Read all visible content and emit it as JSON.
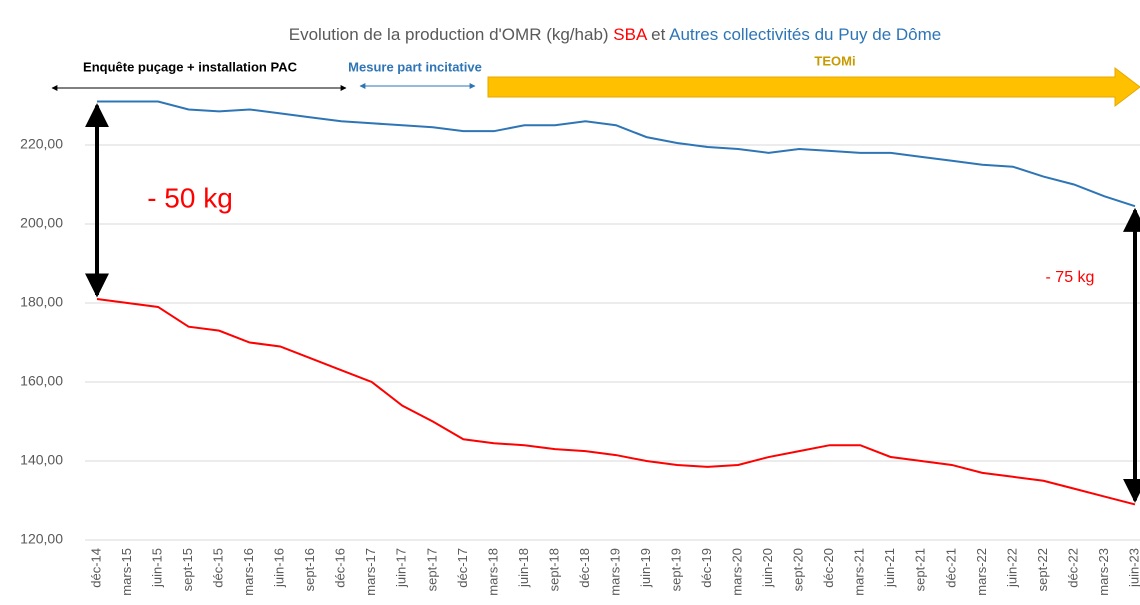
{
  "chart_data": {
    "type": "line",
    "title": "Evolution de la production d'OMR (kg/hab)",
    "title_joiner": "et",
    "categories": [
      "déc-14",
      "mars-15",
      "juin-15",
      "sept-15",
      "déc-15",
      "mars-16",
      "juin-16",
      "sept-16",
      "déc-16",
      "mars-17",
      "juin-17",
      "sept-17",
      "déc-17",
      "mars-18",
      "juin-18",
      "sept-18",
      "déc-18",
      "mars-19",
      "juin-19",
      "sept-19",
      "déc-19",
      "mars-20",
      "juin-20",
      "sept-20",
      "déc-20",
      "mars-21",
      "juin-21",
      "sept-21",
      "déc-21",
      "mars-22",
      "juin-22",
      "sept-22",
      "déc-22",
      "mars-23",
      "juin-23"
    ],
    "series": [
      {
        "name": "SBA",
        "color": "#ff0000",
        "values": [
          181,
          180,
          179,
          174,
          173,
          170,
          169,
          166,
          163,
          160,
          154,
          150,
          145.5,
          144.5,
          144,
          143,
          142.5,
          141.5,
          140,
          139,
          138.5,
          139,
          141,
          142.5,
          144,
          144,
          141,
          140,
          139,
          137,
          136,
          135,
          133,
          131,
          129
        ]
      },
      {
        "name": "Autres collectivités du Puy de Dôme",
        "color": "#2e75b6",
        "values": [
          231,
          231,
          231,
          229,
          228.5,
          229,
          228,
          227,
          226,
          225.5,
          225,
          224.5,
          223.5,
          223.5,
          225,
          225,
          226,
          225,
          222,
          220.5,
          219.5,
          219,
          218,
          219,
          218.5,
          218,
          218,
          217,
          216,
          215,
          214.5,
          212,
          210,
          207,
          204.5
        ]
      }
    ],
    "ylim": [
      120,
      240
    ],
    "yticks": [
      {
        "value": 120,
        "label": "120,00"
      },
      {
        "value": 140,
        "label": "140,00"
      },
      {
        "value": 160,
        "label": "160,00"
      },
      {
        "value": 180,
        "label": "180,00"
      },
      {
        "value": 200,
        "label": "200,00"
      },
      {
        "value": 220,
        "label": "220,00"
      }
    ],
    "grid": true,
    "annotations": [
      "Enquête puçage + installation PAC",
      "Mesure part incitative",
      "TEOMi",
      "- 50 kg",
      "- 75 kg"
    ]
  }
}
